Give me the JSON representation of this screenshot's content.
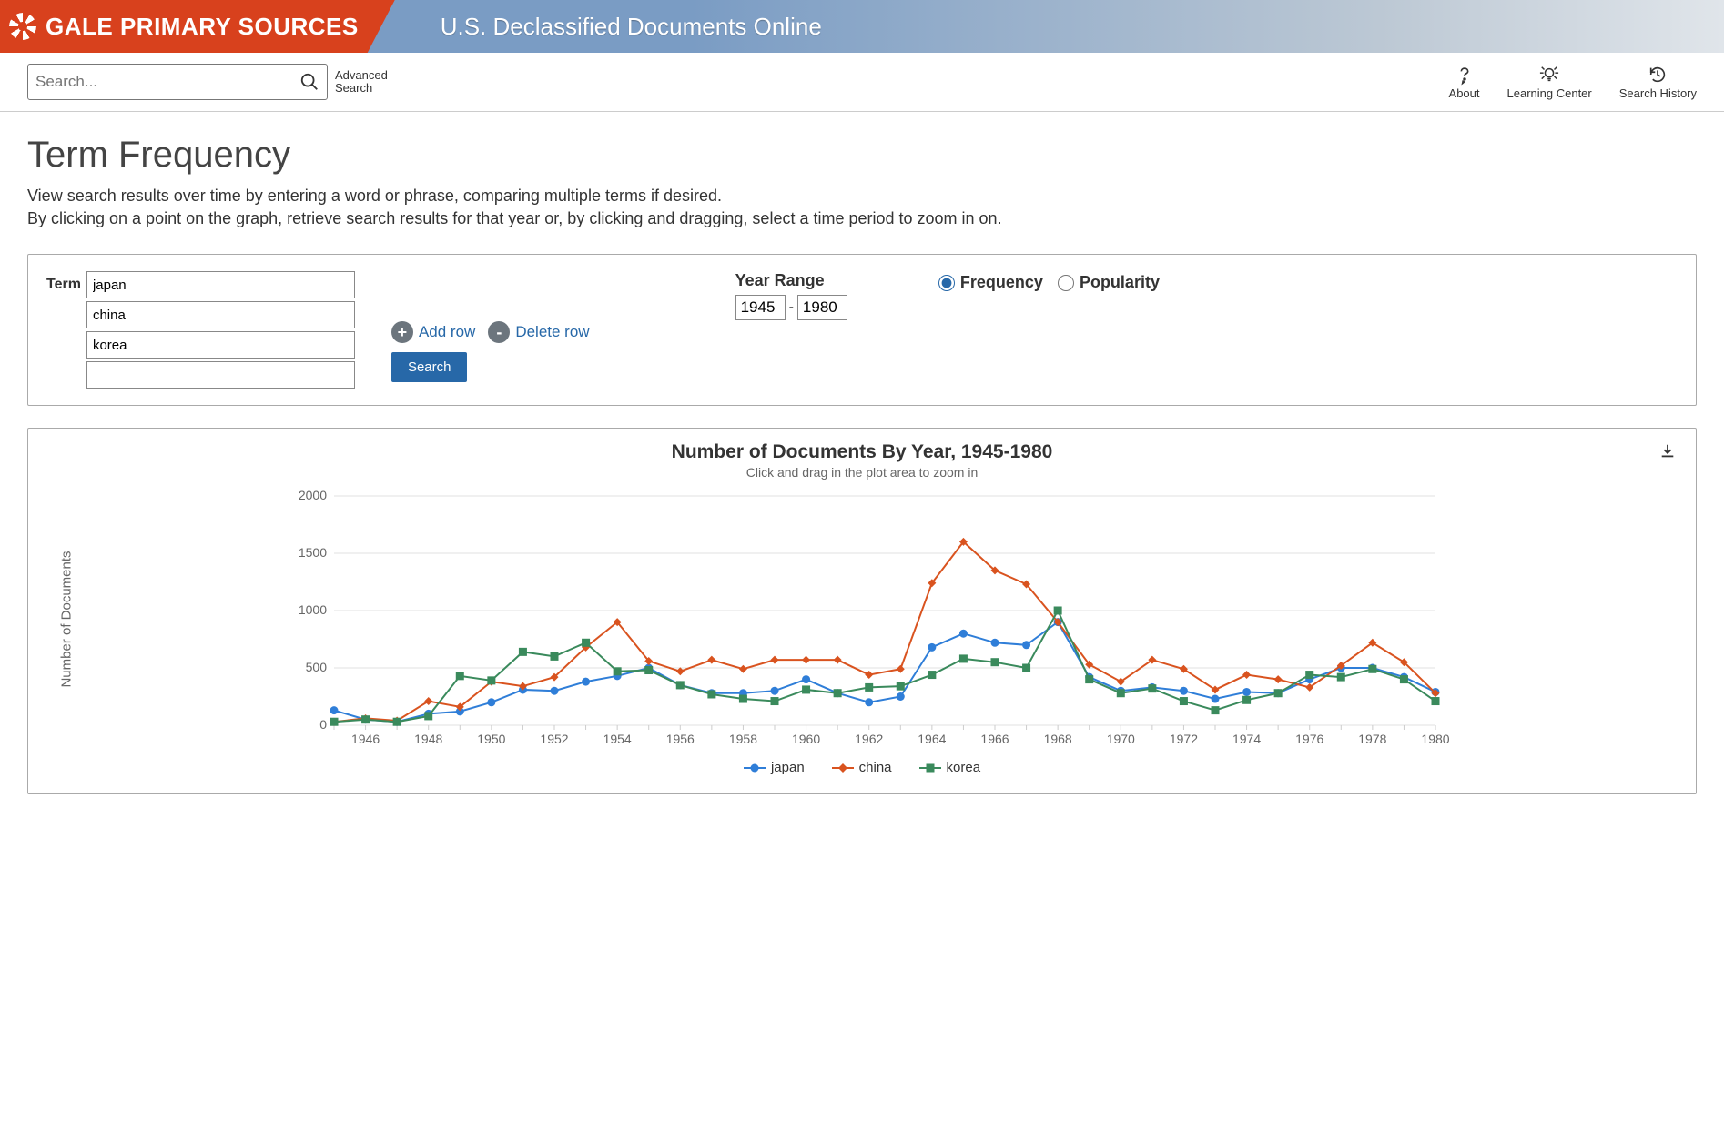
{
  "header": {
    "brand": "GALE PRIMARY SOURCES",
    "site_title": "U.S. Declassified Documents Online"
  },
  "search": {
    "placeholder": "Search...",
    "advanced_label": "Advanced Search"
  },
  "nav": {
    "about": "About",
    "learning": "Learning Center",
    "history": "Search History"
  },
  "page": {
    "title": "Term Frequency",
    "desc1": "View search results over time by entering a word or phrase, comparing multiple terms if desired.",
    "desc2": "By clicking on a point on the graph, retrieve search results for that year or, by clicking and dragging, select a time period to zoom in on."
  },
  "form": {
    "term_label": "Term",
    "terms": [
      "japan",
      "china",
      "korea",
      ""
    ],
    "add_row": "Add row",
    "delete_row": "Delete row",
    "search_button": "Search",
    "year_label": "Year Range",
    "year_from": "1945",
    "year_to": "1980",
    "mode_frequency": "Frequency",
    "mode_popularity": "Popularity"
  },
  "chart": {
    "title": "Number of Documents By Year, 1945-1980",
    "subtitle": "Click and drag in the plot area to zoom in",
    "ylabel": "Number of Documents",
    "background": "#ffffff",
    "grid_color": "#e1e1e1",
    "axis_font": 14,
    "ylim": [
      0,
      2000
    ],
    "ytick_step": 500,
    "x_years": [
      1945,
      1946,
      1947,
      1948,
      1949,
      1950,
      1951,
      1952,
      1953,
      1954,
      1955,
      1956,
      1957,
      1958,
      1959,
      1960,
      1961,
      1962,
      1963,
      1964,
      1965,
      1966,
      1967,
      1968,
      1969,
      1970,
      1971,
      1972,
      1973,
      1974,
      1975,
      1976,
      1977,
      1978,
      1979,
      1980
    ],
    "x_tick_step": 2,
    "series": [
      {
        "name": "japan",
        "color": "#2f7ed8",
        "marker": "circle",
        "values": [
          130,
          50,
          30,
          100,
          120,
          200,
          310,
          300,
          380,
          430,
          500,
          350,
          280,
          280,
          300,
          400,
          280,
          200,
          250,
          680,
          800,
          720,
          700,
          900,
          420,
          300,
          330,
          300,
          230,
          290,
          280,
          400,
          500,
          500,
          420,
          290
        ]
      },
      {
        "name": "china",
        "color": "#d9531f",
        "marker": "diamond",
        "values": [
          30,
          60,
          40,
          210,
          160,
          380,
          340,
          420,
          680,
          900,
          560,
          470,
          570,
          490,
          570,
          570,
          570,
          440,
          490,
          1240,
          1600,
          1350,
          1230,
          900,
          530,
          380,
          570,
          490,
          310,
          440,
          400,
          330,
          520,
          720,
          550,
          280
        ]
      },
      {
        "name": "korea",
        "color": "#3a8a5c",
        "marker": "square",
        "values": [
          30,
          50,
          30,
          80,
          430,
          390,
          640,
          600,
          720,
          470,
          480,
          350,
          270,
          230,
          210,
          310,
          280,
          330,
          340,
          440,
          580,
          550,
          500,
          1000,
          400,
          280,
          320,
          210,
          130,
          220,
          280,
          440,
          420,
          490,
          400,
          210
        ]
      }
    ],
    "legend": [
      "japan",
      "china",
      "korea"
    ]
  }
}
